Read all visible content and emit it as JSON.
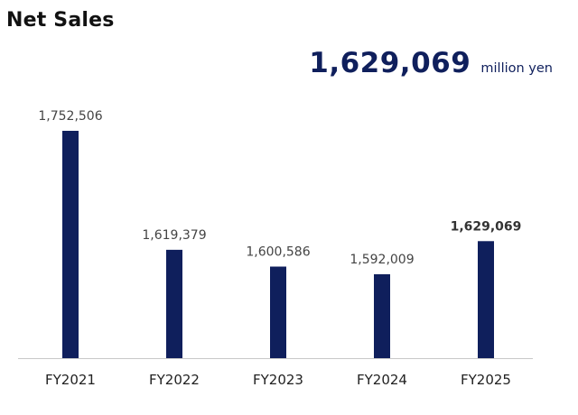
{
  "title": "Net Sales",
  "headline": {
    "value": "1,629,069",
    "unit": "million yen"
  },
  "colors": {
    "bar": "#0f1f5c",
    "axis": "#c8c8c8",
    "label": "#444444",
    "highlight_label": "#333333"
  },
  "chart_data": {
    "type": "bar",
    "title": "Net Sales",
    "xlabel": "",
    "ylabel": "",
    "unit": "million yen",
    "categories": [
      "FY2021",
      "FY2022",
      "FY2023",
      "FY2024",
      "FY2025"
    ],
    "values": [
      1752506,
      1619379,
      1600586,
      1592009,
      1629069
    ],
    "value_labels": [
      "1,752,506",
      "1,619,379",
      "1,600,586",
      "1,592,009",
      "1,629,069"
    ],
    "highlight_index": 4,
    "grid": false,
    "legend": "none"
  }
}
